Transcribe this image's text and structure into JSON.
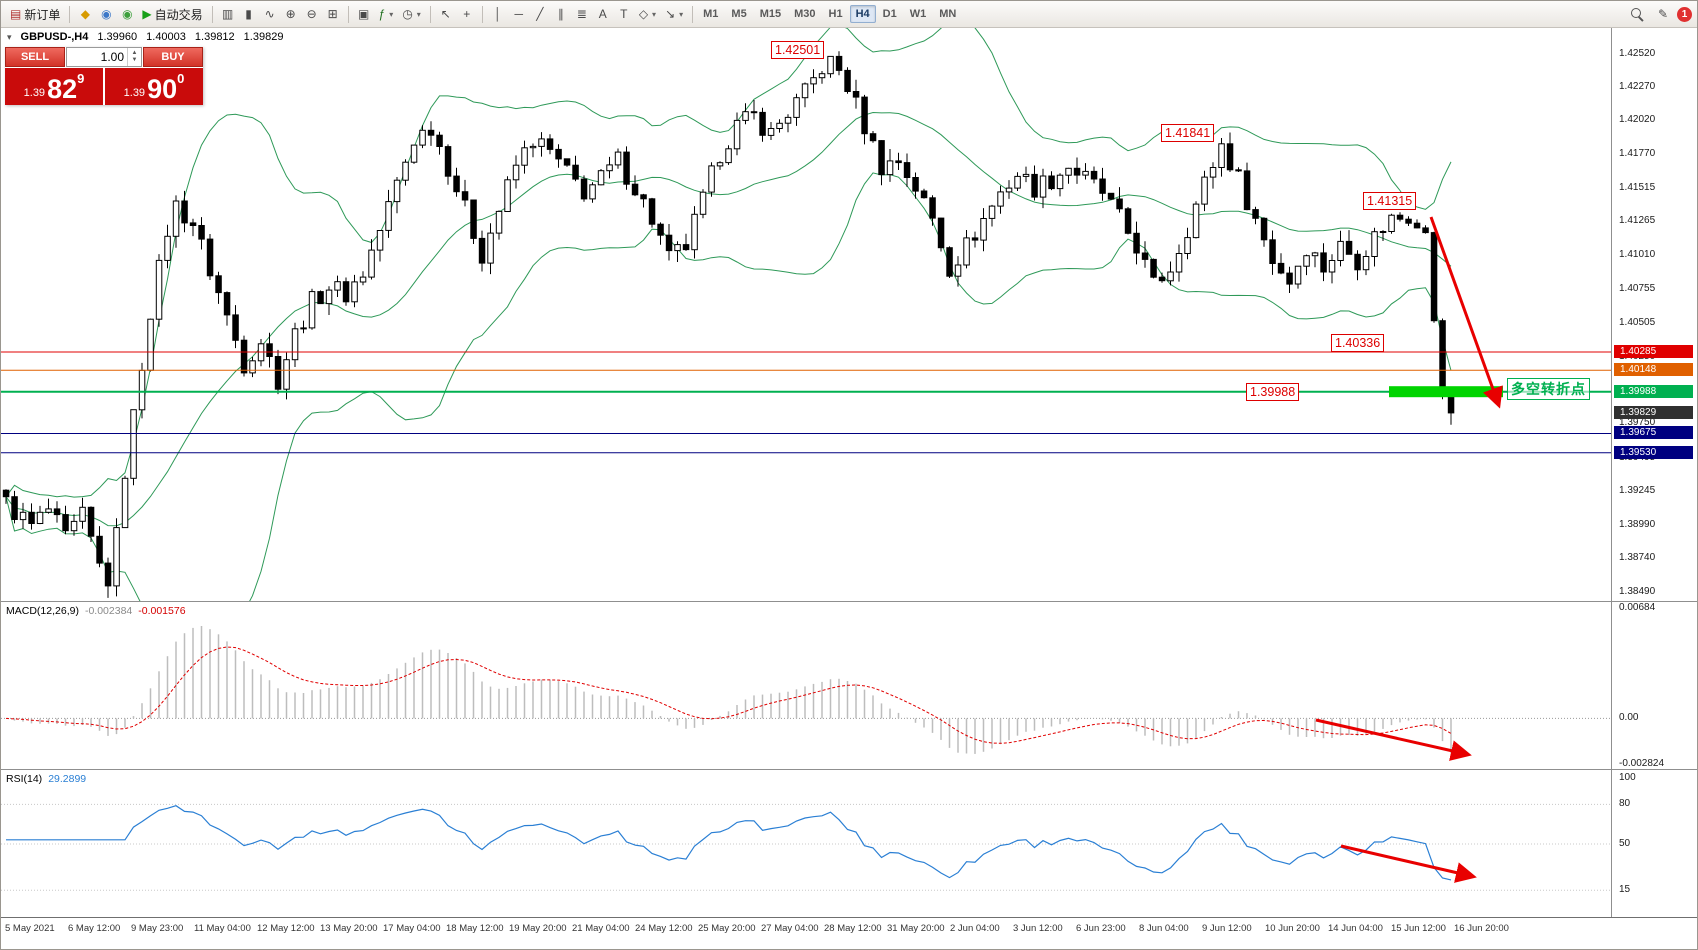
{
  "toolbar": {
    "items": [
      {
        "name": "new-order",
        "glyph": "▤",
        "color": "#b03030",
        "label": "新订单"
      },
      {
        "sep": true
      },
      {
        "name": "algo-book",
        "glyph": "◆",
        "color": "#d79b00"
      },
      {
        "name": "market",
        "glyph": "◉",
        "color": "#3c78c8"
      },
      {
        "name": "community",
        "glyph": "◉",
        "color": "#3ca03c"
      },
      {
        "name": "autotrade",
        "glyph": "▶",
        "color": "#18a018",
        "label": "自动交易"
      },
      {
        "sep": true
      },
      {
        "name": "chart-bars",
        "glyph": "▥"
      },
      {
        "name": "chart-candles",
        "glyph": "▮"
      },
      {
        "name": "chart-line",
        "glyph": "∿"
      },
      {
        "name": "zoom-in",
        "glyph": "⊕"
      },
      {
        "name": "zoom-out",
        "glyph": "⊖"
      },
      {
        "name": "tile-windows",
        "glyph": "⊞"
      },
      {
        "sep": true
      },
      {
        "name": "arrange-windows",
        "glyph": "▣"
      },
      {
        "name": "indicators",
        "glyph": "ƒ",
        "color": "#207020",
        "dropdown": true
      },
      {
        "name": "periods",
        "glyph": "◷",
        "dropdown": true
      },
      {
        "sep": true
      },
      {
        "name": "cursor",
        "glyph": "↖"
      },
      {
        "name": "crosshair",
        "glyph": "+"
      },
      {
        "sep": true
      },
      {
        "name": "vertical-line",
        "glyph": "│"
      },
      {
        "name": "horizontal-line",
        "glyph": "─"
      },
      {
        "name": "trendline",
        "glyph": "╱"
      },
      {
        "name": "equidistant-channel",
        "glyph": "∥"
      },
      {
        "name": "fibonacci",
        "glyph": "≣"
      },
      {
        "name": "text",
        "glyph": "A"
      },
      {
        "name": "text-label",
        "glyph": "T"
      },
      {
        "name": "shapes",
        "glyph": "◇",
        "dropdown": true
      },
      {
        "name": "arrows",
        "glyph": "↘",
        "dropdown": true
      },
      {
        "sep": true
      }
    ],
    "timeframes": [
      "M1",
      "M5",
      "M15",
      "M30",
      "H1",
      "H4",
      "D1",
      "W1",
      "MN"
    ],
    "active_timeframe": "H4",
    "pencil_glyph": "✎",
    "badge_count": "1"
  },
  "symbol_bar": {
    "menu_glyph": "▾",
    "symbol": "GBPUSD-,H4",
    "open": "1.39960",
    "high": "1.40003",
    "low": "1.39812",
    "close": "1.39829"
  },
  "trade_panel": {
    "sell_label": "SELL",
    "buy_label": "BUY",
    "volume": "1.00",
    "spin_up": "▲",
    "spin_down": "▼",
    "sell_price_small": "1.39",
    "sell_price_big": "82",
    "sell_price_sup": "9",
    "buy_price_small": "1.39",
    "buy_price_big": "90",
    "buy_price_sup": "0"
  },
  "annotations": {
    "callouts": [
      "1.42501",
      "1.41841",
      "1.41315",
      "1.40336",
      "1.39988"
    ],
    "turning_point": "多空转折点"
  },
  "price_axis": {
    "labels": [
      "1.42520",
      "1.42270",
      "1.42020",
      "1.41770",
      "1.41515",
      "1.41265",
      "1.41010",
      "1.40755",
      "1.40505",
      "1.40250",
      "1.40000",
      "1.39750",
      "1.39495",
      "1.39245",
      "1.38990",
      "1.38740",
      "1.38490"
    ],
    "tags": [
      {
        "label": "1.40285",
        "color": "#e00000"
      },
      {
        "label": "1.40148",
        "color": "#e06000"
      },
      {
        "label": "1.39988",
        "color": "#00b050"
      },
      {
        "label": "1.39829",
        "color": "#303030"
      },
      {
        "label": "1.39675",
        "color": "#000080"
      },
      {
        "label": "1.39530",
        "color": "#000080"
      }
    ]
  },
  "macd": {
    "title": "MACD(12,26,9)",
    "value1": "-0.002384",
    "value2": "-0.001576",
    "axis": [
      "0.00684",
      "0.00",
      "-0.002824"
    ]
  },
  "rsi": {
    "title": "RSI(14)",
    "value": "29.2899",
    "axis": [
      "100",
      "80",
      "50",
      "15"
    ]
  },
  "time_axis": [
    "5 May 2021",
    "6 May 12:00",
    "9 May 23:00",
    "11 May 04:00",
    "12 May 12:00",
    "13 May 20:00",
    "17 May 04:00",
    "18 May 12:00",
    "19 May 20:00",
    "21 May 04:00",
    "24 May 12:00",
    "25 May 20:00",
    "27 May 04:00",
    "28 May 12:00",
    "31 May 20:00",
    "2 Jun 04:00",
    "3 Jun 12:00",
    "6 Jun 23:00",
    "8 Jun 04:00",
    "9 Jun 12:00",
    "10 Jun 20:00",
    "14 Jun 04:00",
    "15 Jun 12:00",
    "16 Jun 20:00"
  ],
  "chart_data": {
    "type": "candlestick",
    "symbol": "GBPUSD-",
    "timeframe": "H4",
    "n_candles": 171,
    "price_top": 1.4272,
    "price_bottom": 1.3842,
    "last_close": 1.39829,
    "anchors": [
      [
        0,
        1.3915
      ],
      [
        3,
        1.3898
      ],
      [
        5,
        1.391
      ],
      [
        7,
        1.3888
      ],
      [
        9,
        1.3905
      ],
      [
        11,
        1.3868
      ],
      [
        12,
        1.3858
      ],
      [
        13,
        1.389
      ],
      [
        14,
        1.394
      ],
      [
        15,
        1.398
      ],
      [
        16,
        1.402
      ],
      [
        17,
        1.406
      ],
      [
        18,
        1.409
      ],
      [
        19,
        1.412
      ],
      [
        20,
        1.4138
      ],
      [
        22,
        1.4125
      ],
      [
        24,
        1.409
      ],
      [
        26,
        1.4055
      ],
      [
        28,
        1.402
      ],
      [
        30,
        1.4038
      ],
      [
        32,
        1.4008
      ],
      [
        34,
        1.4042
      ],
      [
        36,
        1.4066
      ],
      [
        38,
        1.4078
      ],
      [
        40,
        1.4072
      ],
      [
        42,
        1.4088
      ],
      [
        44,
        1.412
      ],
      [
        46,
        1.4155
      ],
      [
        48,
        1.4188
      ],
      [
        50,
        1.4198
      ],
      [
        52,
        1.4168
      ],
      [
        54,
        1.4135
      ],
      [
        56,
        1.4102
      ],
      [
        58,
        1.4135
      ],
      [
        60,
        1.4168
      ],
      [
        62,
        1.4188
      ],
      [
        64,
        1.4178
      ],
      [
        66,
        1.4162
      ],
      [
        68,
        1.4149
      ],
      [
        70,
        1.4158
      ],
      [
        72,
        1.4172
      ],
      [
        74,
        1.4152
      ],
      [
        76,
        1.4128
      ],
      [
        78,
        1.4098
      ],
      [
        80,
        1.4108
      ],
      [
        82,
        1.4142
      ],
      [
        84,
        1.4178
      ],
      [
        86,
        1.4198
      ],
      [
        88,
        1.4205
      ],
      [
        90,
        1.4192
      ],
      [
        92,
        1.4208
      ],
      [
        94,
        1.4222
      ],
      [
        96,
        1.4242
      ],
      [
        97,
        1.425
      ],
      [
        99,
        1.4228
      ],
      [
        101,
        1.4198
      ],
      [
        103,
        1.4168
      ],
      [
        105,
        1.4172
      ],
      [
        107,
        1.4152
      ],
      [
        109,
        1.4128
      ],
      [
        111,
        1.4092
      ],
      [
        113,
        1.4108
      ],
      [
        115,
        1.4128
      ],
      [
        117,
        1.4148
      ],
      [
        119,
        1.4162
      ],
      [
        121,
        1.4152
      ],
      [
        123,
        1.4158
      ],
      [
        125,
        1.4168
      ],
      [
        127,
        1.4158
      ],
      [
        129,
        1.4148
      ],
      [
        131,
        1.4128
      ],
      [
        133,
        1.4108
      ],
      [
        135,
        1.4078
      ],
      [
        137,
        1.4092
      ],
      [
        139,
        1.4122
      ],
      [
        141,
        1.4155
      ],
      [
        143,
        1.4184
      ],
      [
        145,
        1.4158
      ],
      [
        147,
        1.4128
      ],
      [
        149,
        1.4098
      ],
      [
        151,
        1.4082
      ],
      [
        153,
        1.4108
      ],
      [
        155,
        1.4092
      ],
      [
        157,
        1.4108
      ],
      [
        159,
        1.4098
      ],
      [
        161,
        1.4115
      ],
      [
        163,
        1.4131
      ],
      [
        165,
        1.4125
      ],
      [
        167,
        1.4118
      ],
      [
        168,
        1.4052
      ],
      [
        169,
        1.3996
      ],
      [
        170,
        1.39829
      ]
    ],
    "hlines": [
      {
        "price": 1.40285,
        "color": "#e00000",
        "width": 1
      },
      {
        "price": 1.40148,
        "color": "#e06000",
        "width": 1
      },
      {
        "price": 1.39988,
        "color": "#00b050",
        "width": 2
      },
      {
        "price": 1.39675,
        "color": "#000080",
        "width": 1
      },
      {
        "price": 1.3953,
        "color": "#000080",
        "width": 1
      }
    ],
    "bollinger": {
      "period": 20,
      "deviation": 2
    },
    "rsi_levels": [
      80,
      50,
      15
    ],
    "colors": {
      "bull": "#ffffff",
      "bear": "#000000",
      "wick": "#000000",
      "bands": "#2e9958",
      "hist": "#bdbdbd",
      "signal": "#e00000",
      "rsi": "#2a7fd4",
      "arrow": "#e80000",
      "highlight": "#00d400"
    }
  }
}
